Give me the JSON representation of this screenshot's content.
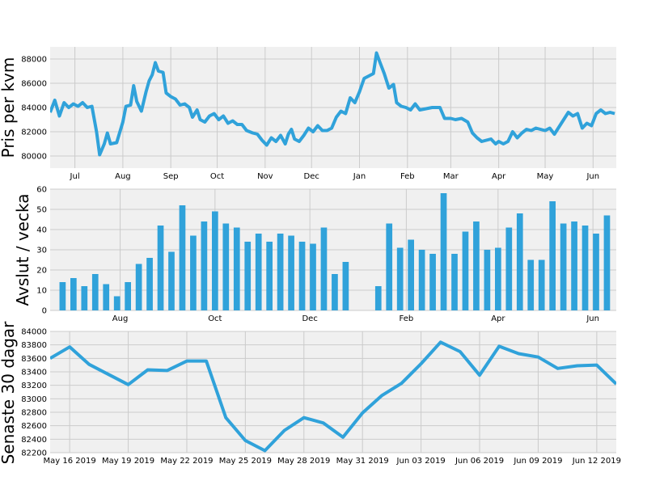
{
  "colors": {
    "series": "#30a2da",
    "plot_background": "#f0f0f0",
    "grid": "#cbcbcb",
    "figure_background": "#ffffff"
  },
  "chart_data": [
    {
      "type": "line",
      "ylabel": "Pris per kvm",
      "ylim": [
        79000,
        89000
      ],
      "y_ticks": [
        80000,
        82000,
        84000,
        86000,
        88000
      ],
      "x_range": [
        "2018-06-15",
        "2019-06-16"
      ],
      "x_ticks": [
        {
          "date": "2018-07-01",
          "label": "Jul"
        },
        {
          "date": "2018-08-01",
          "label": "Aug"
        },
        {
          "date": "2018-09-01",
          "label": "Sep"
        },
        {
          "date": "2018-10-01",
          "label": "Oct"
        },
        {
          "date": "2018-11-01",
          "label": "Nov"
        },
        {
          "date": "2018-12-01",
          "label": "Dec"
        },
        {
          "date": "2019-01-01",
          "label": "Jan"
        },
        {
          "date": "2019-02-01",
          "label": "Feb"
        },
        {
          "date": "2019-03-01",
          "label": "Mar"
        },
        {
          "date": "2019-04-01",
          "label": "Apr"
        },
        {
          "date": "2019-05-01",
          "label": "May"
        },
        {
          "date": "2019-06-01",
          "label": "Jun"
        }
      ],
      "grid": true,
      "series": [
        {
          "points": [
            [
              "2018-06-15",
              83600
            ],
            [
              "2018-06-18",
              84600
            ],
            [
              "2018-06-21",
              83300
            ],
            [
              "2018-06-24",
              84400
            ],
            [
              "2018-06-27",
              84000
            ],
            [
              "2018-06-30",
              84300
            ],
            [
              "2018-07-03",
              84100
            ],
            [
              "2018-07-06",
              84400
            ],
            [
              "2018-07-09",
              84000
            ],
            [
              "2018-07-12",
              84100
            ],
            [
              "2018-07-15",
              82000
            ],
            [
              "2018-07-17",
              80100
            ],
            [
              "2018-07-20",
              81000
            ],
            [
              "2018-07-22",
              81900
            ],
            [
              "2018-07-24",
              81000
            ],
            [
              "2018-07-28",
              81100
            ],
            [
              "2018-08-01",
              82800
            ],
            [
              "2018-08-03",
              84100
            ],
            [
              "2018-08-06",
              84200
            ],
            [
              "2018-08-08",
              85800
            ],
            [
              "2018-08-10",
              84500
            ],
            [
              "2018-08-13",
              83700
            ],
            [
              "2018-08-16",
              85300
            ],
            [
              "2018-08-18",
              86200
            ],
            [
              "2018-08-20",
              86700
            ],
            [
              "2018-08-22",
              87700
            ],
            [
              "2018-08-24",
              87000
            ],
            [
              "2018-08-27",
              86900
            ],
            [
              "2018-08-29",
              85200
            ],
            [
              "2018-09-01",
              84900
            ],
            [
              "2018-09-04",
              84700
            ],
            [
              "2018-09-07",
              84200
            ],
            [
              "2018-09-10",
              84300
            ],
            [
              "2018-09-13",
              84000
            ],
            [
              "2018-09-15",
              83200
            ],
            [
              "2018-09-18",
              83800
            ],
            [
              "2018-09-20",
              83000
            ],
            [
              "2018-09-23",
              82800
            ],
            [
              "2018-09-26",
              83300
            ],
            [
              "2018-09-29",
              83500
            ],
            [
              "2018-10-02",
              83000
            ],
            [
              "2018-10-05",
              83300
            ],
            [
              "2018-10-08",
              82700
            ],
            [
              "2018-10-11",
              82900
            ],
            [
              "2018-10-14",
              82600
            ],
            [
              "2018-10-17",
              82600
            ],
            [
              "2018-10-20",
              82100
            ],
            [
              "2018-10-24",
              81900
            ],
            [
              "2018-10-27",
              81800
            ],
            [
              "2018-10-30",
              81300
            ],
            [
              "2018-11-02",
              80900
            ],
            [
              "2018-11-05",
              81500
            ],
            [
              "2018-11-08",
              81200
            ],
            [
              "2018-11-11",
              81700
            ],
            [
              "2018-11-14",
              81000
            ],
            [
              "2018-11-16",
              81800
            ],
            [
              "2018-11-18",
              82200
            ],
            [
              "2018-11-20",
              81400
            ],
            [
              "2018-11-23",
              81200
            ],
            [
              "2018-11-26",
              81700
            ],
            [
              "2018-11-29",
              82300
            ],
            [
              "2018-12-02",
              82000
            ],
            [
              "2018-12-05",
              82500
            ],
            [
              "2018-12-08",
              82100
            ],
            [
              "2018-12-11",
              82100
            ],
            [
              "2018-12-14",
              82300
            ],
            [
              "2018-12-17",
              83200
            ],
            [
              "2018-12-20",
              83700
            ],
            [
              "2018-12-23",
              83500
            ],
            [
              "2018-12-26",
              84800
            ],
            [
              "2018-12-29",
              84400
            ],
            [
              "2019-01-01",
              85300
            ],
            [
              "2019-01-04",
              86400
            ],
            [
              "2019-01-07",
              86600
            ],
            [
              "2019-01-10",
              86800
            ],
            [
              "2019-01-12",
              88500
            ],
            [
              "2019-01-14",
              87800
            ],
            [
              "2019-01-17",
              86800
            ],
            [
              "2019-01-20",
              85600
            ],
            [
              "2019-01-23",
              85900
            ],
            [
              "2019-01-25",
              84400
            ],
            [
              "2019-01-28",
              84100
            ],
            [
              "2019-01-31",
              84000
            ],
            [
              "2019-02-03",
              83800
            ],
            [
              "2019-02-06",
              84300
            ],
            [
              "2019-02-09",
              83800
            ],
            [
              "2019-02-13",
              83900
            ],
            [
              "2019-02-17",
              84000
            ],
            [
              "2019-02-22",
              84000
            ],
            [
              "2019-02-25",
              83100
            ],
            [
              "2019-03-01",
              83100
            ],
            [
              "2019-03-04",
              83000
            ],
            [
              "2019-03-08",
              83100
            ],
            [
              "2019-03-12",
              82800
            ],
            [
              "2019-03-15",
              81900
            ],
            [
              "2019-03-18",
              81500
            ],
            [
              "2019-03-21",
              81200
            ],
            [
              "2019-03-24",
              81300
            ],
            [
              "2019-03-27",
              81400
            ],
            [
              "2019-03-30",
              81000
            ],
            [
              "2019-04-01",
              81200
            ],
            [
              "2019-04-04",
              81000
            ],
            [
              "2019-04-07",
              81200
            ],
            [
              "2019-04-10",
              82000
            ],
            [
              "2019-04-13",
              81500
            ],
            [
              "2019-04-16",
              81900
            ],
            [
              "2019-04-19",
              82200
            ],
            [
              "2019-04-22",
              82100
            ],
            [
              "2019-04-25",
              82300
            ],
            [
              "2019-04-28",
              82200
            ],
            [
              "2019-05-01",
              82100
            ],
            [
              "2019-05-04",
              82300
            ],
            [
              "2019-05-07",
              81800
            ],
            [
              "2019-05-10",
              82400
            ],
            [
              "2019-05-13",
              83000
            ],
            [
              "2019-05-16",
              83600
            ],
            [
              "2019-05-19",
              83300
            ],
            [
              "2019-05-22",
              83500
            ],
            [
              "2019-05-25",
              82300
            ],
            [
              "2019-05-28",
              82700
            ],
            [
              "2019-05-31",
              82500
            ],
            [
              "2019-06-03",
              83500
            ],
            [
              "2019-06-06",
              83800
            ],
            [
              "2019-06-09",
              83500
            ],
            [
              "2019-06-12",
              83600
            ],
            [
              "2019-06-15",
              83500
            ]
          ]
        }
      ]
    },
    {
      "type": "bar",
      "ylabel": "Avslut / vecka",
      "ylim": [
        0,
        60
      ],
      "y_ticks": [
        0,
        10,
        20,
        30,
        40,
        50,
        60
      ],
      "x_range": [
        "2018-06-17",
        "2019-06-16"
      ],
      "x_ticks": [
        {
          "date": "2018-08-01",
          "label": "Aug"
        },
        {
          "date": "2018-10-01",
          "label": "Oct"
        },
        {
          "date": "2018-12-01",
          "label": "Dec"
        },
        {
          "date": "2019-02-01",
          "label": "Feb"
        },
        {
          "date": "2019-04-01",
          "label": "Apr"
        },
        {
          "date": "2019-06-01",
          "label": "Jun"
        }
      ],
      "grid": true,
      "bar_width_days": 4,
      "series": [
        {
          "points": [
            [
              "2018-06-25",
              14
            ],
            [
              "2018-07-02",
              16
            ],
            [
              "2018-07-09",
              12
            ],
            [
              "2018-07-16",
              18
            ],
            [
              "2018-07-23",
              13
            ],
            [
              "2018-07-30",
              7
            ],
            [
              "2018-08-06",
              14
            ],
            [
              "2018-08-13",
              23
            ],
            [
              "2018-08-20",
              26
            ],
            [
              "2018-08-27",
              42
            ],
            [
              "2018-09-03",
              29
            ],
            [
              "2018-09-10",
              52
            ],
            [
              "2018-09-17",
              37
            ],
            [
              "2018-09-24",
              44
            ],
            [
              "2018-10-01",
              49
            ],
            [
              "2018-10-08",
              43
            ],
            [
              "2018-10-15",
              41
            ],
            [
              "2018-10-22",
              34
            ],
            [
              "2018-10-29",
              38
            ],
            [
              "2018-11-05",
              34
            ],
            [
              "2018-11-12",
              38
            ],
            [
              "2018-11-19",
              37
            ],
            [
              "2018-11-26",
              34
            ],
            [
              "2018-12-03",
              33
            ],
            [
              "2018-12-10",
              41
            ],
            [
              "2018-12-17",
              18
            ],
            [
              "2018-12-24",
              24
            ],
            [
              "2019-01-14",
              12
            ],
            [
              "2019-01-21",
              43
            ],
            [
              "2019-01-28",
              31
            ],
            [
              "2019-02-04",
              35
            ],
            [
              "2019-02-11",
              30
            ],
            [
              "2019-02-18",
              28
            ],
            [
              "2019-02-25",
              58
            ],
            [
              "2019-03-04",
              28
            ],
            [
              "2019-03-11",
              39
            ],
            [
              "2019-03-18",
              44
            ],
            [
              "2019-03-25",
              30
            ],
            [
              "2019-04-01",
              31
            ],
            [
              "2019-04-08",
              41
            ],
            [
              "2019-04-15",
              48
            ],
            [
              "2019-04-22",
              25
            ],
            [
              "2019-04-29",
              25
            ],
            [
              "2019-05-06",
              54
            ],
            [
              "2019-05-13",
              43
            ],
            [
              "2019-05-20",
              44
            ],
            [
              "2019-05-27",
              42
            ],
            [
              "2019-06-03",
              38
            ],
            [
              "2019-06-10",
              47
            ]
          ]
        }
      ]
    },
    {
      "type": "line",
      "ylabel": "Senaste 30 dagar",
      "ylim": [
        82200,
        84000
      ],
      "y_ticks": [
        82200,
        82400,
        82600,
        82800,
        83000,
        83200,
        83400,
        83600,
        83800,
        84000
      ],
      "x_range": [
        "2019-05-15",
        "2019-06-13"
      ],
      "x_ticks": [
        {
          "date": "2019-05-16",
          "label": "May 16 2019"
        },
        {
          "date": "2019-05-19",
          "label": "May 19 2019"
        },
        {
          "date": "2019-05-22",
          "label": "May 22 2019"
        },
        {
          "date": "2019-05-25",
          "label": "May 25 2019"
        },
        {
          "date": "2019-05-28",
          "label": "May 28 2019"
        },
        {
          "date": "2019-05-31",
          "label": "May 31 2019"
        },
        {
          "date": "2019-06-03",
          "label": "Jun 03 2019"
        },
        {
          "date": "2019-06-06",
          "label": "Jun 06 2019"
        },
        {
          "date": "2019-06-09",
          "label": "Jun 09 2019"
        },
        {
          "date": "2019-06-12",
          "label": "Jun 12 2019"
        }
      ],
      "grid": true,
      "series": [
        {
          "points": [
            [
              "2019-05-15",
              83600
            ],
            [
              "2019-05-16",
              83770
            ],
            [
              "2019-05-17",
              83510
            ],
            [
              "2019-05-18",
              83360
            ],
            [
              "2019-05-19",
              83210
            ],
            [
              "2019-05-20",
              83430
            ],
            [
              "2019-05-21",
              83420
            ],
            [
              "2019-05-22",
              83560
            ],
            [
              "2019-05-23",
              83560
            ],
            [
              "2019-05-24",
              82720
            ],
            [
              "2019-05-25",
              82380
            ],
            [
              "2019-05-26",
              82230
            ],
            [
              "2019-05-27",
              82530
            ],
            [
              "2019-05-28",
              82720
            ],
            [
              "2019-05-29",
              82640
            ],
            [
              "2019-05-30",
              82430
            ],
            [
              "2019-05-31",
              82790
            ],
            [
              "2019-06-01",
              83050
            ],
            [
              "2019-06-02",
              83230
            ],
            [
              "2019-06-03",
              83520
            ],
            [
              "2019-06-04",
              83840
            ],
            [
              "2019-06-05",
              83700
            ],
            [
              "2019-06-06",
              83350
            ],
            [
              "2019-06-07",
              83780
            ],
            [
              "2019-06-08",
              83670
            ],
            [
              "2019-06-09",
              83620
            ],
            [
              "2019-06-10",
              83450
            ],
            [
              "2019-06-11",
              83490
            ],
            [
              "2019-06-12",
              83500
            ],
            [
              "2019-06-13",
              83220
            ]
          ]
        }
      ]
    }
  ]
}
